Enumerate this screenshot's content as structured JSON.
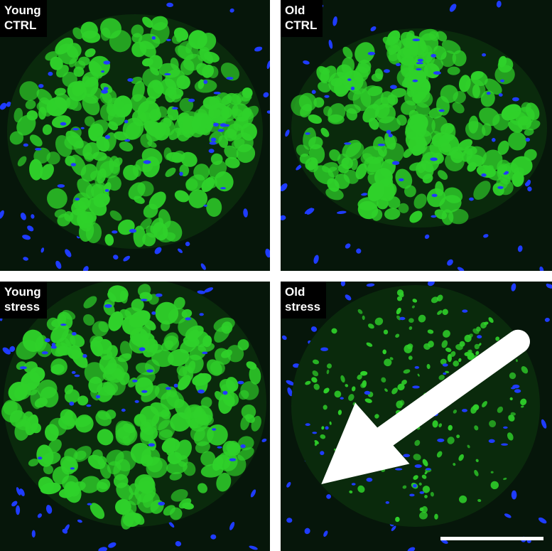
{
  "panels": [
    {
      "id": "young-ctrl",
      "label": "Young\nCTRL",
      "condition": "Young",
      "treatment": "CTRL"
    },
    {
      "id": "old-ctrl",
      "label": "Old\nCTRL",
      "condition": "Old",
      "treatment": "CTRL"
    },
    {
      "id": "young-stress",
      "label": "Young\nstress",
      "condition": "Young",
      "treatment": "stress"
    },
    {
      "id": "old-stress",
      "label": "Old\nstress",
      "condition": "Old",
      "treatment": "stress"
    }
  ],
  "colors": {
    "fiber_green": "#2fd12a",
    "nuclei_blue": "#1f3cff",
    "background": "#06160a",
    "label_bg": "#000000",
    "label_text": "#ffffff",
    "divider": "#ffffff"
  },
  "annotations": {
    "arrow_icon": "arrow-pointing-left-down",
    "scale_bar": "scale-bar"
  }
}
